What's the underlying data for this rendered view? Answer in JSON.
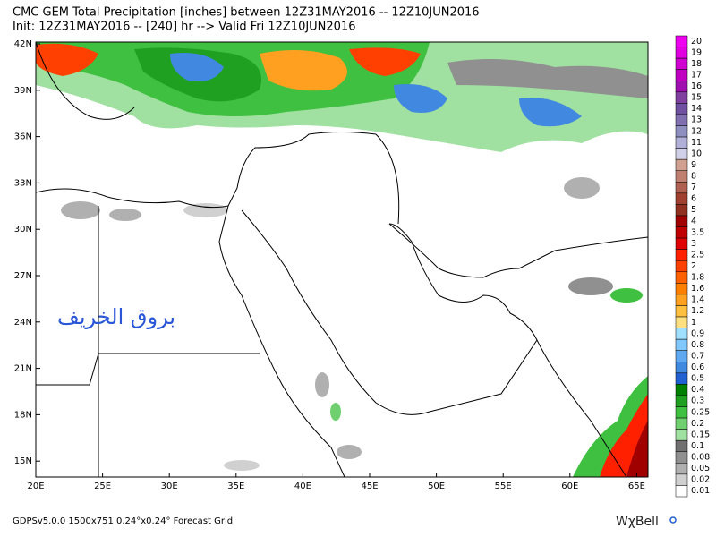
{
  "header": {
    "line1": "CMC GEM Total Precipitation [inches] between 12Z31MAY2016 -- 12Z10JUN2016",
    "line2": "Init: 12Z31MAY2016 -- [240] hr --> Valid Fri 12Z10JUN2016"
  },
  "map": {
    "lat_labels": [
      "42N",
      "39N",
      "36N",
      "33N",
      "30N",
      "27N",
      "24N",
      "21N",
      "18N",
      "15N"
    ],
    "lon_labels": [
      "20E",
      "25E",
      "30E",
      "35E",
      "40E",
      "45E",
      "50E",
      "55E",
      "60E",
      "65E"
    ],
    "watermark": "بروق الخريف"
  },
  "colorbar": {
    "items": [
      {
        "label": "20",
        "color": "#f000f0"
      },
      {
        "label": "19",
        "color": "#e000e0"
      },
      {
        "label": "18",
        "color": "#d000d0"
      },
      {
        "label": "17",
        "color": "#c000c0"
      },
      {
        "label": "16",
        "color": "#a010b0"
      },
      {
        "label": "15",
        "color": "#8040a0"
      },
      {
        "label": "14",
        "color": "#7050a0"
      },
      {
        "label": "13",
        "color": "#8070b0"
      },
      {
        "label": "12",
        "color": "#9090c0"
      },
      {
        "label": "11",
        "color": "#b0b0d8"
      },
      {
        "label": "10",
        "color": "#d0d0e8"
      },
      {
        "label": "9",
        "color": "#d0a090"
      },
      {
        "label": "8",
        "color": "#c08070"
      },
      {
        "label": "7",
        "color": "#b06050"
      },
      {
        "label": "6",
        "color": "#a04030"
      },
      {
        "label": "5",
        "color": "#903020"
      },
      {
        "label": "4",
        "color": "#a00000"
      },
      {
        "label": "3.5",
        "color": "#c00000"
      },
      {
        "label": "3",
        "color": "#e00000"
      },
      {
        "label": "2.5",
        "color": "#ff2000"
      },
      {
        "label": "2",
        "color": "#ff4000"
      },
      {
        "label": "1.8",
        "color": "#ff6000"
      },
      {
        "label": "1.6",
        "color": "#ff8000"
      },
      {
        "label": "1.4",
        "color": "#ffa020"
      },
      {
        "label": "1.2",
        "color": "#ffc040"
      },
      {
        "label": "1",
        "color": "#ffe080"
      },
      {
        "label": "0.9",
        "color": "#a0e0ff"
      },
      {
        "label": "0.8",
        "color": "#80c8ff"
      },
      {
        "label": "0.7",
        "color": "#60a8f0"
      },
      {
        "label": "0.6",
        "color": "#4088e0"
      },
      {
        "label": "0.5",
        "color": "#2060d0"
      },
      {
        "label": "0.4",
        "color": "#008000"
      },
      {
        "label": "0.3",
        "color": "#20a020"
      },
      {
        "label": "0.25",
        "color": "#40c040"
      },
      {
        "label": "0.2",
        "color": "#70d070"
      },
      {
        "label": "0.15",
        "color": "#a0e0a0"
      },
      {
        "label": "0.1",
        "color": "#707070"
      },
      {
        "label": "0.08",
        "color": "#909090"
      },
      {
        "label": "0.05",
        "color": "#b0b0b0"
      },
      {
        "label": "0.02",
        "color": "#d0d0d0"
      },
      {
        "label": "0.01",
        "color": "#ffffff"
      }
    ]
  },
  "footer": {
    "left": "GDPSv5.0.0 1500x751 0.24°x0.24° Forecast Grid",
    "logo": "WχBell"
  }
}
